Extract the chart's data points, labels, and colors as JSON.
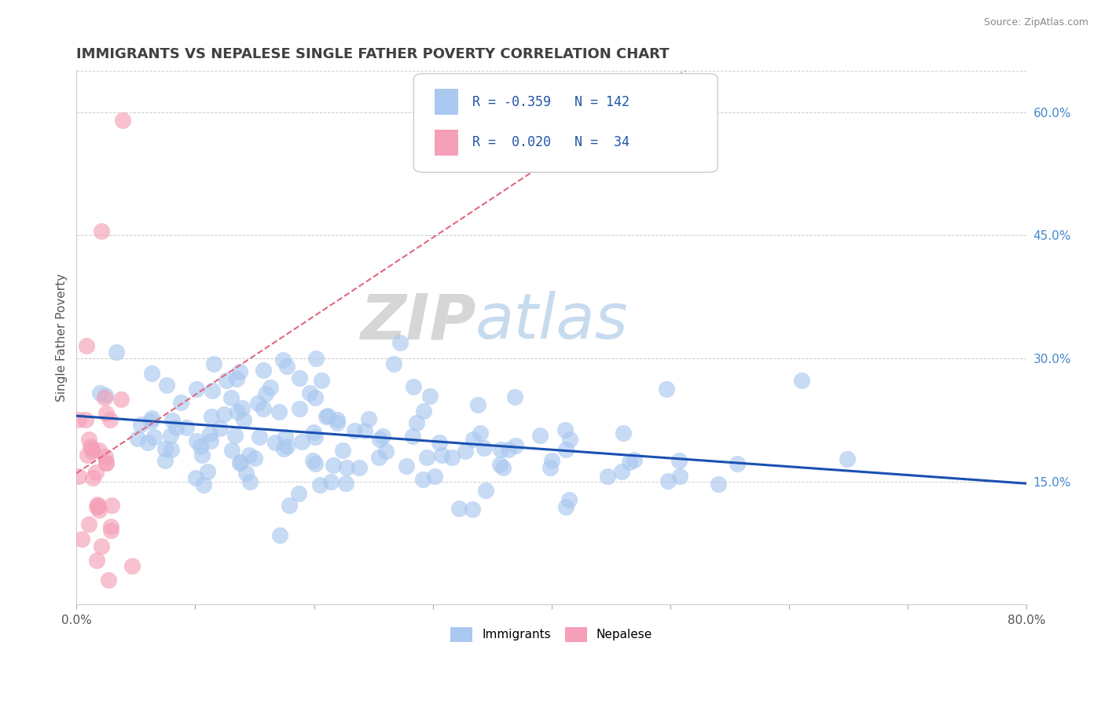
{
  "title": "IMMIGRANTS VS NEPALESE SINGLE FATHER POVERTY CORRELATION CHART",
  "source": "Source: ZipAtlas.com",
  "ylabel": "Single Father Poverty",
  "watermark_zip": "ZIP",
  "watermark_atlas": "atlas",
  "xlim": [
    0.0,
    0.8
  ],
  "ylim": [
    0.0,
    0.65
  ],
  "ytick_positions": [
    0.15,
    0.3,
    0.45,
    0.6
  ],
  "legend_immigrants": "Immigrants",
  "legend_nepalese": "Nepalese",
  "R_immigrants": "-0.359",
  "N_immigrants": "142",
  "R_nepalese": "0.020",
  "N_nepalese": "34",
  "immigrants_color": "#aac8f0",
  "nepalese_color": "#f5a0b8",
  "immigrants_line_color": "#1a50b0",
  "nepalese_line_color": "#e06880",
  "background_color": "#ffffff",
  "grid_color": "#cccccc",
  "title_color": "#404040",
  "source_color": "#888888",
  "tick_label_color": "#555555",
  "right_tick_color": "#4488cc",
  "legend_text_color": "#2255aa"
}
